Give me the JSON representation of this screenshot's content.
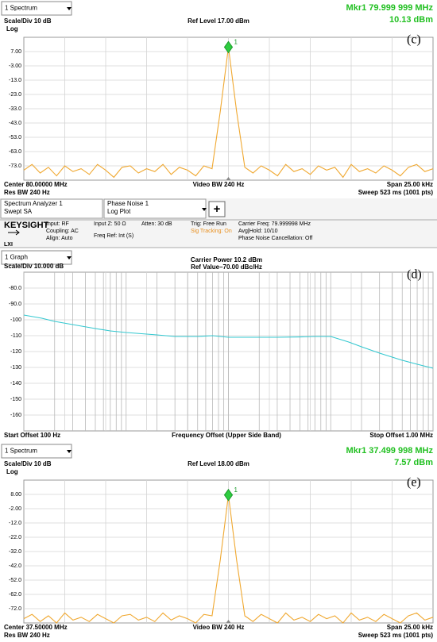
{
  "chart_data": [
    {
      "type": "line",
      "dropdown": "1 Spectrum",
      "scale": "Scale/Div 10 dB",
      "ref_level": "Ref Level 17.00 dBm",
      "marker_freq": "Mkr1 79.999 999 MHz",
      "marker_amp": "10.13 dBm",
      "scale_type": "Log",
      "marker_label": "1",
      "panel_label": "(c)",
      "footer": {
        "center_freq": "Center 80.00000 MHz",
        "video_bw": "Video BW 240 Hz",
        "span": "Span 25.00 kHz",
        "res_bw": "Res BW 240 Hz",
        "sweep": "Sweep 523 ms (1001 pts)"
      },
      "x": [
        -12.5,
        -12,
        -11.5,
        -11,
        -10.5,
        -10,
        -9.5,
        -9,
        -8.5,
        -8,
        -7.5,
        -7,
        -6.5,
        -6,
        -5.5,
        -5,
        -4.5,
        -4,
        -3.5,
        -3,
        -2.5,
        -2,
        -1.5,
        -1,
        -0.5,
        0,
        0.5,
        1,
        1.5,
        2,
        2.5,
        3,
        3.5,
        4,
        4.5,
        5,
        5.5,
        6,
        6.5,
        7,
        7.5,
        8,
        8.5,
        9,
        9.5,
        10,
        10.5,
        11,
        11.5,
        12,
        12.5
      ],
      "values": [
        -76,
        -72,
        -78,
        -74,
        -80,
        -73,
        -77,
        -75,
        -79,
        -72,
        -76,
        -81,
        -74,
        -73,
        -78,
        -75,
        -77,
        -72,
        -79,
        -74,
        -76,
        -80,
        -73,
        -75,
        -35,
        10.13,
        -35,
        -74,
        -78,
        -73,
        -76,
        -80,
        -72,
        -77,
        -75,
        -79,
        -73,
        -76,
        -74,
        -81,
        -72,
        -77,
        -75,
        -78,
        -73,
        -76,
        -80,
        -74,
        -72,
        -77,
        -75
      ],
      "color": "#f0a830",
      "xlim": [
        -12.5,
        12.5
      ],
      "ylim": [
        -83,
        17
      ],
      "yticks": [
        {
          "value": 7,
          "label": "7.00"
        },
        {
          "value": -3,
          "label": "-3.00"
        },
        {
          "value": -13,
          "label": "-13.0"
        },
        {
          "value": -23,
          "label": "-23.0"
        },
        {
          "value": -33,
          "label": "-33.0"
        },
        {
          "value": -43,
          "label": "-43.0"
        },
        {
          "value": -53,
          "label": "-53.0"
        },
        {
          "value": -63,
          "label": "-63.0"
        },
        {
          "value": -73,
          "label": "-73.0"
        }
      ],
      "grid": true
    },
    {
      "type": "line",
      "log_x": true,
      "dropdown": "1 Graph",
      "scale": "Scale/Div 10.000 dB",
      "carrier_power": "Carrier Power 10.2 dBm",
      "ref_value": "Ref Value–70.00 dBc/Hz",
      "panel_label": "(d)",
      "x_start": "Start Offset 100 Hz",
      "xlabel": "Frequency Offset (Upper Side Band)",
      "x_stop": "Stop Offset 1.00 MHz",
      "x": [
        100,
        150,
        200,
        300,
        500,
        700,
        1000,
        2000,
        3000,
        5000,
        7000,
        10000,
        20000,
        30000,
        50000,
        70000,
        100000,
        150000,
        200000,
        300000,
        500000,
        700000,
        1000000
      ],
      "values": [
        -97,
        -99,
        -101,
        -103,
        -105.5,
        -107,
        -108,
        -109.5,
        -110.5,
        -110.5,
        -110,
        -111,
        -111,
        -111,
        -110.8,
        -110.5,
        -110.5,
        -114,
        -117,
        -121,
        -125.5,
        -128,
        -130.5
      ],
      "color": "#33c8d0",
      "xlim": [
        100,
        1000000
      ],
      "xticks": [
        100,
        200,
        300,
        400,
        500,
        600,
        700,
        800,
        900,
        1000,
        2000,
        3000,
        4000,
        5000,
        6000,
        7000,
        8000,
        9000,
        10000,
        20000,
        30000,
        40000,
        50000,
        60000,
        70000,
        80000,
        90000,
        100000,
        200000,
        300000,
        400000,
        500000,
        600000,
        700000,
        800000,
        900000,
        1000000
      ],
      "ylim": [
        -170,
        -70
      ],
      "yticks": [
        {
          "value": -80,
          "label": "-80.0"
        },
        {
          "value": -90,
          "label": "-90.0"
        },
        -100,
        -110,
        -120,
        -130,
        -140,
        -150,
        -160
      ],
      "grid": true
    },
    {
      "type": "line",
      "dropdown": "1 Spectrum",
      "scale": "Scale/Div 10 dB",
      "ref_level": "Ref Level 18.00 dBm",
      "marker_freq": "Mkr1 37.499 998 MHz",
      "marker_amp": "7.57 dBm",
      "scale_type": "Log",
      "marker_label": "1",
      "panel_label": "(e)",
      "footer": {
        "center_freq": "Center 37.50000 MHz",
        "video_bw": "Video BW 240 Hz",
        "span": "Span 25.00 kHz",
        "res_bw": "Res BW 240 Hz",
        "sweep": "Sweep 523 ms (1001 pts)"
      },
      "x": [
        -12.5,
        -12,
        -11.5,
        -11,
        -10.5,
        -10,
        -9.5,
        -9,
        -8.5,
        -8,
        -7.5,
        -7,
        -6.5,
        -6,
        -5.5,
        -5,
        -4.5,
        -4,
        -3.5,
        -3,
        -2.5,
        -2,
        -1.5,
        -1,
        -0.5,
        0,
        0.5,
        1,
        1.5,
        2,
        2.5,
        3,
        3.5,
        4,
        4.5,
        5,
        5.5,
        6,
        6.5,
        7,
        7.5,
        8,
        8.5,
        9,
        9.5,
        10,
        10.5,
        11,
        11.5,
        12,
        12.5
      ],
      "values": [
        -79,
        -76,
        -81,
        -77,
        -82,
        -75,
        -80,
        -78,
        -81,
        -76,
        -79,
        -82,
        -77,
        -76,
        -80,
        -78,
        -81,
        -75,
        -80,
        -77,
        -79,
        -82,
        -76,
        -77,
        -38,
        7.57,
        -38,
        -77,
        -81,
        -76,
        -79,
        -82,
        -75,
        -80,
        -78,
        -81,
        -76,
        -79,
        -77,
        -82,
        -75,
        -80,
        -78,
        -81,
        -76,
        -79,
        -82,
        -77,
        -75,
        -80,
        -78
      ],
      "color": "#f0a830",
      "xlim": [
        -12.5,
        12.5
      ],
      "ylim": [
        -82,
        18
      ],
      "yticks": [
        {
          "value": 8,
          "label": "8.00"
        },
        {
          "value": -2,
          "label": "-2.00"
        },
        {
          "value": -12,
          "label": "-12.0"
        },
        {
          "value": -22,
          "label": "-22.0"
        },
        {
          "value": -32,
          "label": "-32.0"
        },
        {
          "value": -42,
          "label": "-42.0"
        },
        {
          "value": -52,
          "label": "-52.0"
        },
        {
          "value": -62,
          "label": "-62.0"
        },
        {
          "value": -72,
          "label": "-72.0"
        }
      ],
      "grid": true
    }
  ],
  "instrument_bar": {
    "app": "Spectrum Analyzer 1",
    "mode": "Swept SA",
    "measurement": "Phase Noise 1",
    "view": "Log Plot",
    "add_button": "+",
    "brand": "KEYSIGHT",
    "lxi": "LXI",
    "input": "Input: RF",
    "coupling": "Coupling: AC",
    "align": "Align: Auto",
    "input_z": "Input Z: 50 Ω",
    "freq_ref": "Freq Ref: Int (S)",
    "atten": "Atten: 30 dB",
    "trig": "Trig: Free Run",
    "sig_tracking": "Sig Tracking: On",
    "carrier_freq": "Carrier Freq: 79.999998 MHz",
    "avg_hold": "Avg|Hold: 10/10",
    "pn_cancel": "Phase Noise Cancellation: Off"
  }
}
